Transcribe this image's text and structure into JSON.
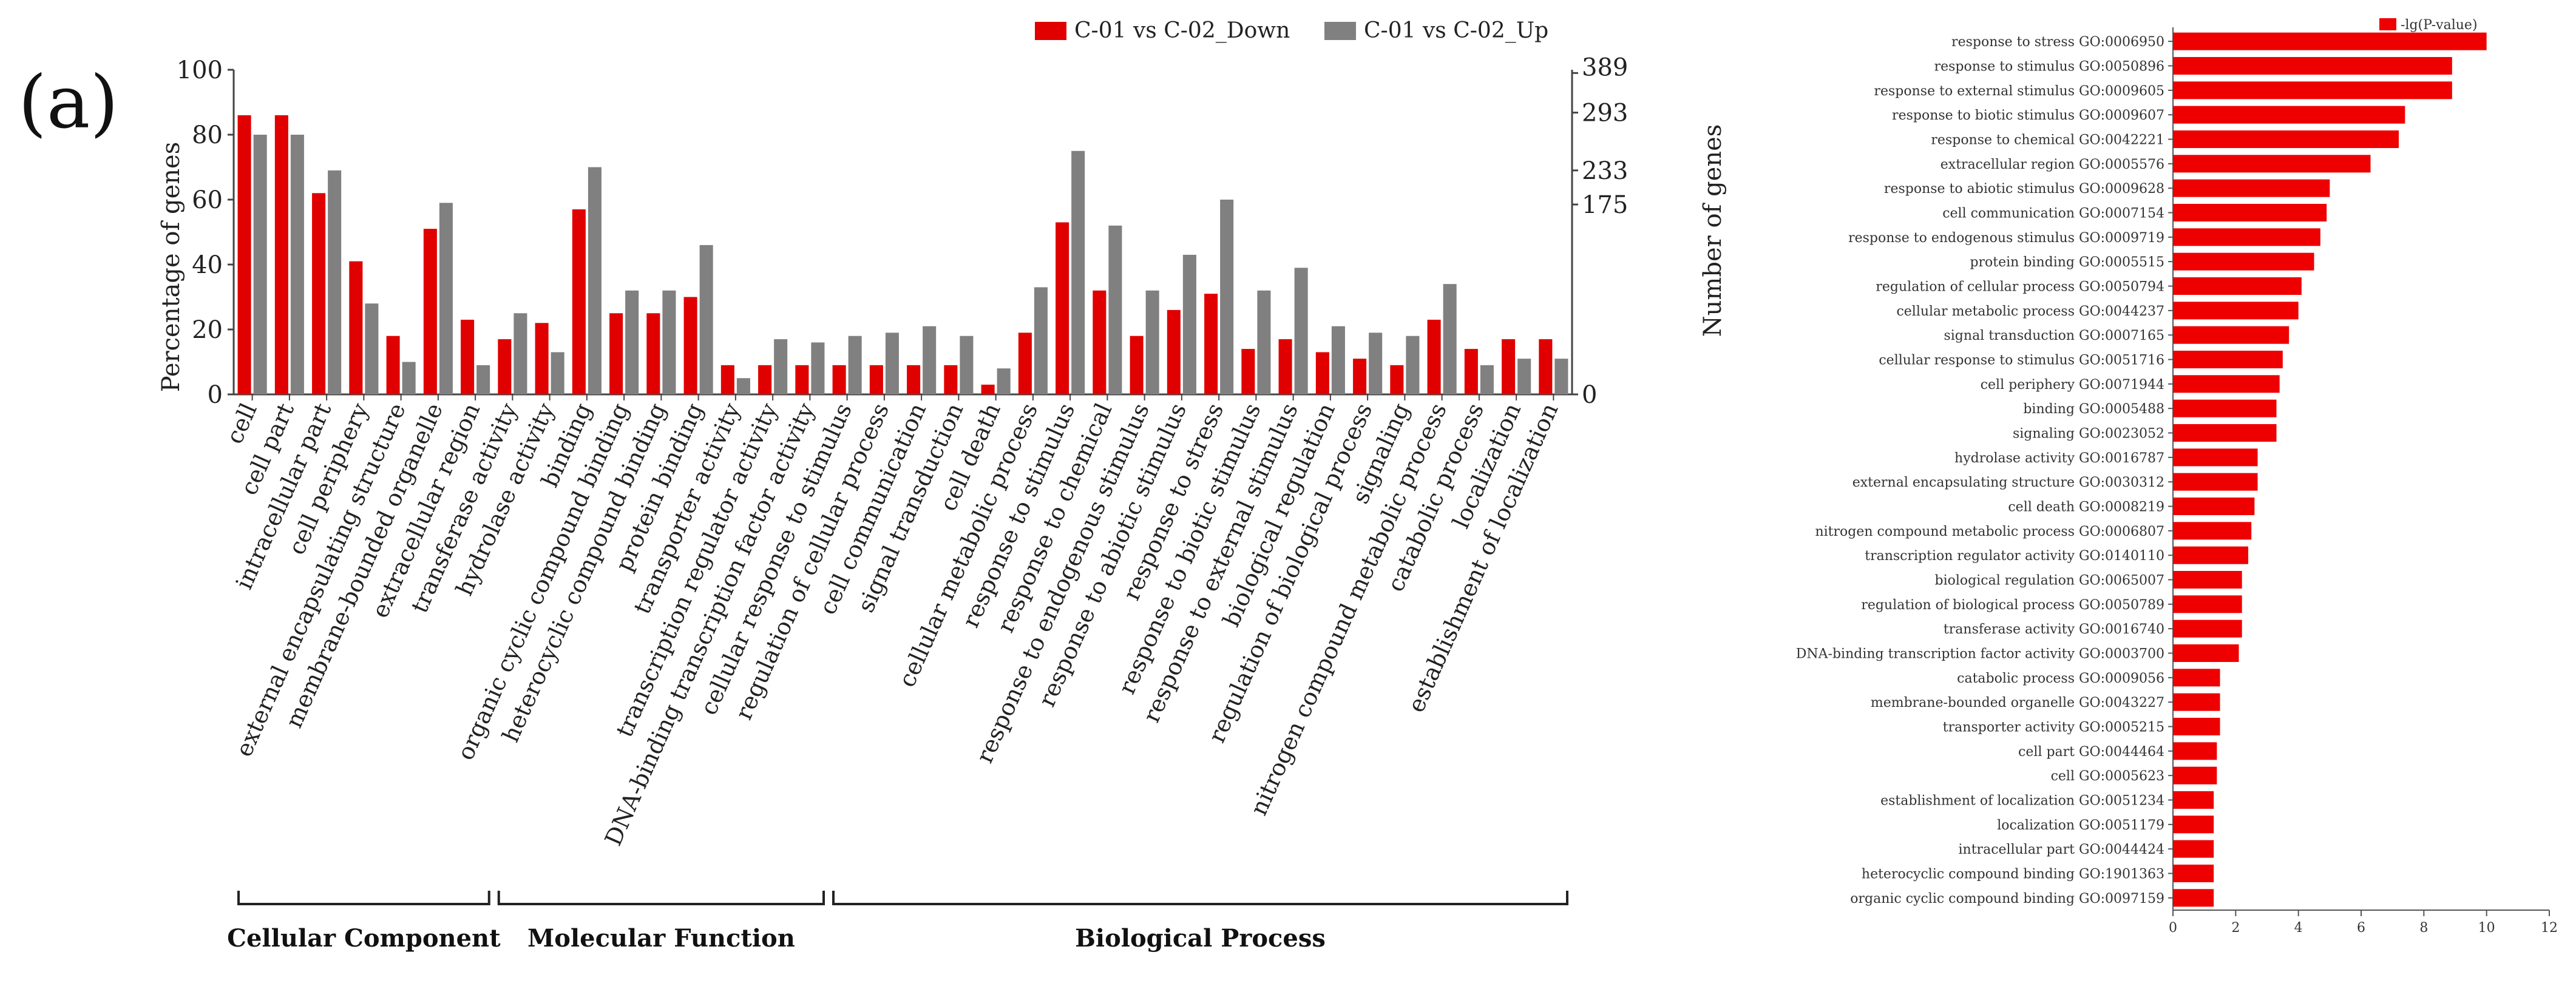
{
  "panel_label": "(a)",
  "colors": {
    "down": "#e00000",
    "up": "#808080",
    "hbar": "#ee0000",
    "axis": "#444444"
  },
  "chart_data": [
    {
      "type": "bar",
      "title": "",
      "ylabel": "Percentage of genes",
      "ylabel_right": "Number of genes",
      "ylim": [
        0,
        100
      ],
      "yticks": [
        "0",
        "20",
        "40",
        "60",
        "80",
        "100"
      ],
      "right_ticks_down": [
        "0",
        "175",
        "233"
      ],
      "right_ticks_up": [
        "0",
        "293",
        "389"
      ],
      "legend": [
        "C-01 vs C-02_Down",
        "C-01 vs C-02_Up"
      ],
      "categories": [
        "cell",
        "cell part",
        "intracellular part",
        "cell periphery",
        "external encapsulating structure",
        "membrane-bounded organelle",
        "extracellular region",
        "transferase activity",
        "hydrolase activity",
        "binding",
        "organic cyclic compound binding",
        "heterocyclic compound binding",
        "protein binding",
        "transporter activity",
        "transcription regulator activity",
        "DNA-binding transcription factor activity",
        "cellular response to stimulus",
        "regulation of cellular process",
        "cell communication",
        "signal transduction",
        "cell death",
        "cellular metabolic process",
        "response to stimulus",
        "response to chemical",
        "response to endogenous stimulus",
        "response to abiotic stimulus",
        "response to stress",
        "response to biotic stimulus",
        "response to external stimulus",
        "biological regulation",
        "regulation of biological process",
        "signaling",
        "nitrogen compound metabolic process",
        "catabolic process",
        "localization",
        "establishment of localization"
      ],
      "series": [
        {
          "name": "C-01 vs C-02_Down",
          "values": [
            86,
            86,
            62,
            41,
            18,
            51,
            23,
            17,
            22,
            57,
            25,
            25,
            30,
            9,
            9,
            9,
            9,
            9,
            9,
            9,
            3,
            19,
            53,
            32,
            18,
            26,
            31,
            14,
            17,
            13,
            11,
            9,
            23,
            14,
            17,
            17
          ]
        },
        {
          "name": "C-01 vs C-02_Up",
          "values": [
            80,
            80,
            69,
            28,
            10,
            59,
            9,
            25,
            13,
            70,
            32,
            32,
            46,
            5,
            17,
            16,
            18,
            19,
            21,
            18,
            8,
            33,
            75,
            52,
            32,
            43,
            60,
            32,
            39,
            21,
            19,
            18,
            34,
            9,
            11,
            11
          ]
        }
      ],
      "groups": [
        {
          "name": "Cellular Component",
          "from": 0,
          "to": 6
        },
        {
          "name": "Molecular Function",
          "from": 7,
          "to": 15
        },
        {
          "name": "Biological Process",
          "from": 16,
          "to": 35
        }
      ]
    },
    {
      "type": "bar",
      "orientation": "horizontal",
      "legend": [
        "-lg(P-value)"
      ],
      "xlim": [
        0,
        12
      ],
      "xticks": [
        "0",
        "2",
        "4",
        "6",
        "8",
        "10",
        "12"
      ],
      "categories": [
        "response to stress GO:0006950",
        "response to stimulus GO:0050896",
        "response to external stimulus GO:0009605",
        "response to biotic stimulus GO:0009607",
        "response to chemical GO:0042221",
        "extracellular region GO:0005576",
        "response to abiotic stimulus GO:0009628",
        "cell communication GO:0007154",
        "response to endogenous stimulus GO:0009719",
        "protein binding GO:0005515",
        "regulation of cellular process GO:0050794",
        "cellular metabolic process GO:0044237",
        "signal transduction GO:0007165",
        "cellular response to stimulus GO:0051716",
        "cell periphery GO:0071944",
        "binding GO:0005488",
        "signaling GO:0023052",
        "hydrolase activity GO:0016787",
        "external encapsulating structure GO:0030312",
        "cell death GO:0008219",
        "nitrogen compound metabolic process GO:0006807",
        "transcription regulator activity GO:0140110",
        "biological regulation GO:0065007",
        "regulation of biological process GO:0050789",
        "transferase activity GO:0016740",
        "DNA-binding transcription factor activity GO:0003700",
        "catabolic process GO:0009056",
        "membrane-bounded organelle GO:0043227",
        "transporter activity GO:0005215",
        "cell part GO:0044464",
        "cell GO:0005623",
        "establishment of localization GO:0051234",
        "localization GO:0051179",
        "intracellular part GO:0044424",
        "heterocyclic compound binding GO:1901363",
        "organic cyclic compound binding GO:0097159"
      ],
      "values": [
        10.0,
        8.9,
        8.9,
        7.4,
        7.2,
        6.3,
        5.0,
        4.9,
        4.7,
        4.5,
        4.1,
        4.0,
        3.7,
        3.5,
        3.4,
        3.3,
        3.3,
        2.7,
        2.7,
        2.6,
        2.5,
        2.4,
        2.2,
        2.2,
        2.2,
        2.1,
        1.5,
        1.5,
        1.5,
        1.4,
        1.4,
        1.3,
        1.3,
        1.3,
        1.3,
        1.3
      ]
    }
  ]
}
